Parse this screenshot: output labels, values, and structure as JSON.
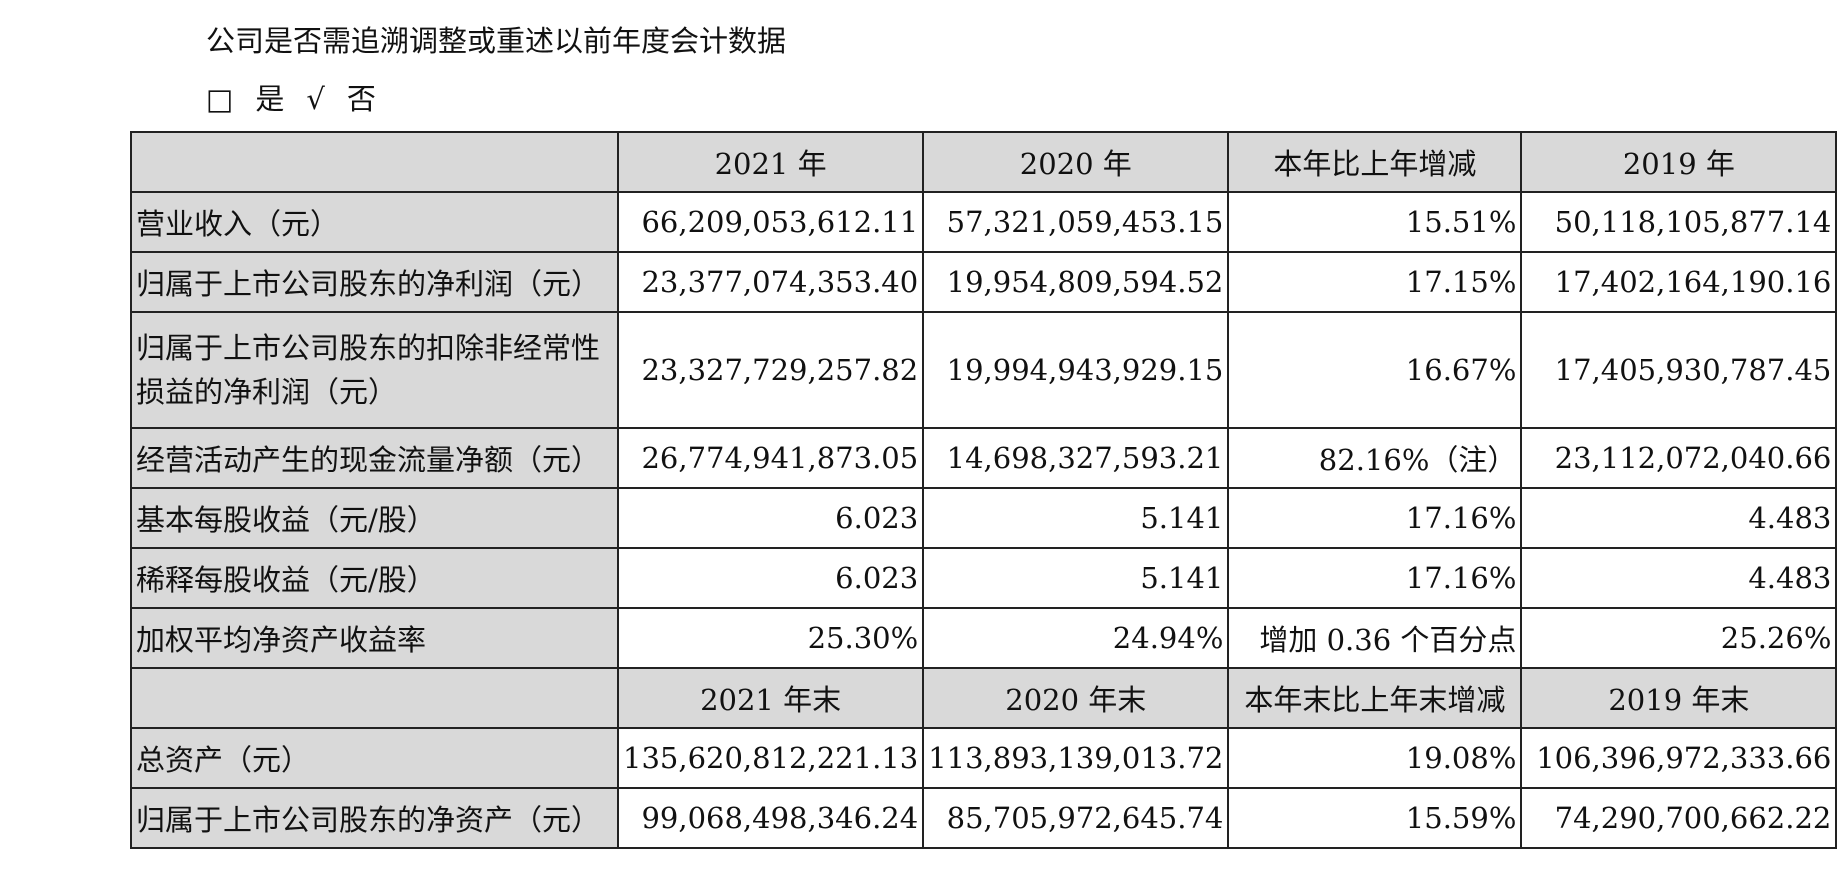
{
  "header": {
    "title": "公司是否需追溯调整或重述以前年度会计数据",
    "options": [
      {
        "box": "□",
        "label": "是"
      },
      {
        "box": "√",
        "label": "否"
      }
    ]
  },
  "table": {
    "sections": [
      {
        "header": [
          null,
          "2021 年",
          "2020 年",
          "本年比上年增减",
          "2019 年"
        ],
        "rows": [
          [
            "营业收入（元）",
            "66,209,053,612.11",
            "57,321,059,453.15",
            "15.51%",
            "50,118,105,877.14"
          ],
          [
            "归属于上市公司股东的净利润（元）",
            "23,377,074,353.40",
            "19,954,809,594.52",
            "17.15%",
            "17,402,164,190.16"
          ],
          [
            "归属于上市公司股东的扣除非经常性损益的净利润（元）",
            "23,327,729,257.82",
            "19,994,943,929.15",
            "16.67%",
            "17,405,930,787.45"
          ],
          [
            "经营活动产生的现金流量净额（元）",
            "26,774,941,873.05",
            "14,698,327,593.21",
            "82.16%（注）",
            "23,112,072,040.66"
          ],
          [
            "基本每股收益（元/股）",
            "6.023",
            "5.141",
            "17.16%",
            "4.483"
          ],
          [
            "稀释每股收益（元/股）",
            "6.023",
            "5.141",
            "17.16%",
            "4.483"
          ],
          [
            "加权平均净资产收益率",
            "25.30%",
            "24.94%",
            "增加 0.36 个百分点",
            "25.26%"
          ]
        ]
      },
      {
        "header": [
          null,
          "2021 年末",
          "2020 年末",
          "本年末比上年末增减",
          "2019 年末"
        ],
        "rows": [
          [
            "总资产（元）",
            "135,620,812,221.13",
            "113,893,139,013.72",
            "19.08%",
            "106,396,972,333.66"
          ],
          [
            "归属于上市公司股东的净资产（元）",
            "99,068,498,346.24",
            "85,705,972,645.74",
            "15.59%",
            "74,290,700,662.22"
          ]
        ]
      }
    ]
  }
}
